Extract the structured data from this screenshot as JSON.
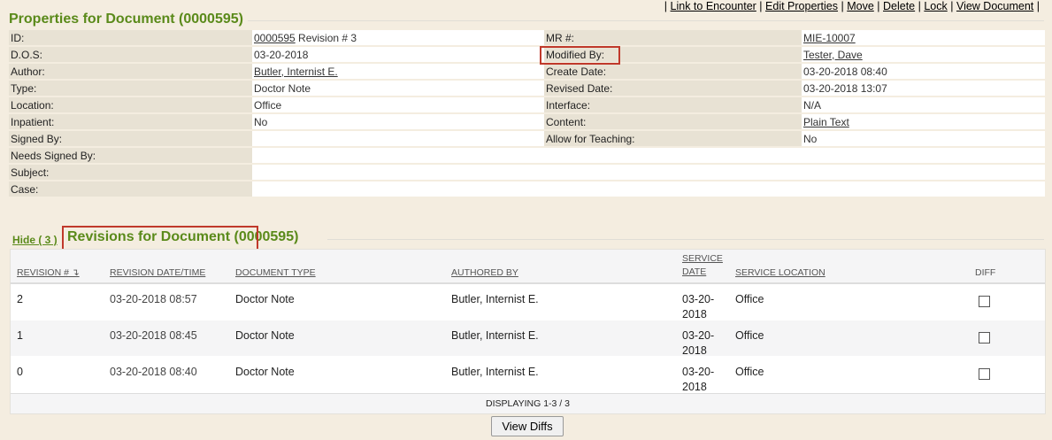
{
  "top_links": [
    "Link to Encounter",
    "Edit Properties",
    "Move",
    "Delete",
    "Lock",
    "View Document"
  ],
  "properties": {
    "title": "Properties for Document (0000595)",
    "rows": [
      {
        "label": "ID:",
        "value_link": "0000595",
        "value": " Revision # 3",
        "label2": "MR #:",
        "value2": "MIE-10007",
        "link2": true
      },
      {
        "label": "D.O.S:",
        "value": "03-20-2018",
        "label2": "Modified By:",
        "value2": "Tester, Dave",
        "link2": true
      },
      {
        "label": "Author:",
        "value_link": "Butler, Internist E.",
        "value": "",
        "label2": "Create Date:",
        "value2": "03-20-2018 08:40"
      },
      {
        "label": "Type:",
        "value": "Doctor Note",
        "label2": "Revised Date:",
        "value2": "03-20-2018 13:07"
      },
      {
        "label": "Location:",
        "value": "Office",
        "label2": "Interface:",
        "value2": "N/A"
      },
      {
        "label": "Inpatient:",
        "value": "No",
        "label2": "Content:",
        "value2": "Plain Text",
        "link2": true
      },
      {
        "label": "Signed By:",
        "value": "",
        "label2": "Allow for Teaching:",
        "value2": "No"
      },
      {
        "label": "Needs Signed By:",
        "value": ""
      },
      {
        "label": "Subject:",
        "value": ""
      },
      {
        "label": "Case:",
        "value": ""
      }
    ]
  },
  "revisions": {
    "hide_link": "Hide ( 3 )",
    "title": "Revisions for Document",
    "title_id": "(0000595)",
    "columns": [
      "REVISION #",
      "REVISION DATE/TIME",
      "DOCUMENT TYPE",
      "AUTHORED BY",
      "SERVICE DATE",
      "SERVICE LOCATION",
      "DIFF"
    ],
    "sort_icon": "sort-desc-icon",
    "rows": [
      {
        "revision": "2",
        "datetime": "03-20-2018 08:57",
        "type": "Doctor Note",
        "author": "Butler, Internist E.",
        "service_date": "03-20-2018",
        "location": "Office",
        "diff": false
      },
      {
        "revision": "1",
        "datetime": "03-20-2018 08:45",
        "type": "Doctor Note",
        "author": "Butler, Internist E.",
        "service_date": "03-20-2018",
        "location": "Office",
        "diff": false
      },
      {
        "revision": "0",
        "datetime": "03-20-2018 08:40",
        "type": "Doctor Note",
        "author": "Butler, Internist E.",
        "service_date": "03-20-2018",
        "location": "Office",
        "diff": false
      }
    ],
    "footer": "DISPLAYING 1-3 / 3",
    "view_diffs": "View Diffs"
  },
  "colors": {
    "title_green": "#5a8a1a",
    "highlight_red": "#c0392b"
  }
}
